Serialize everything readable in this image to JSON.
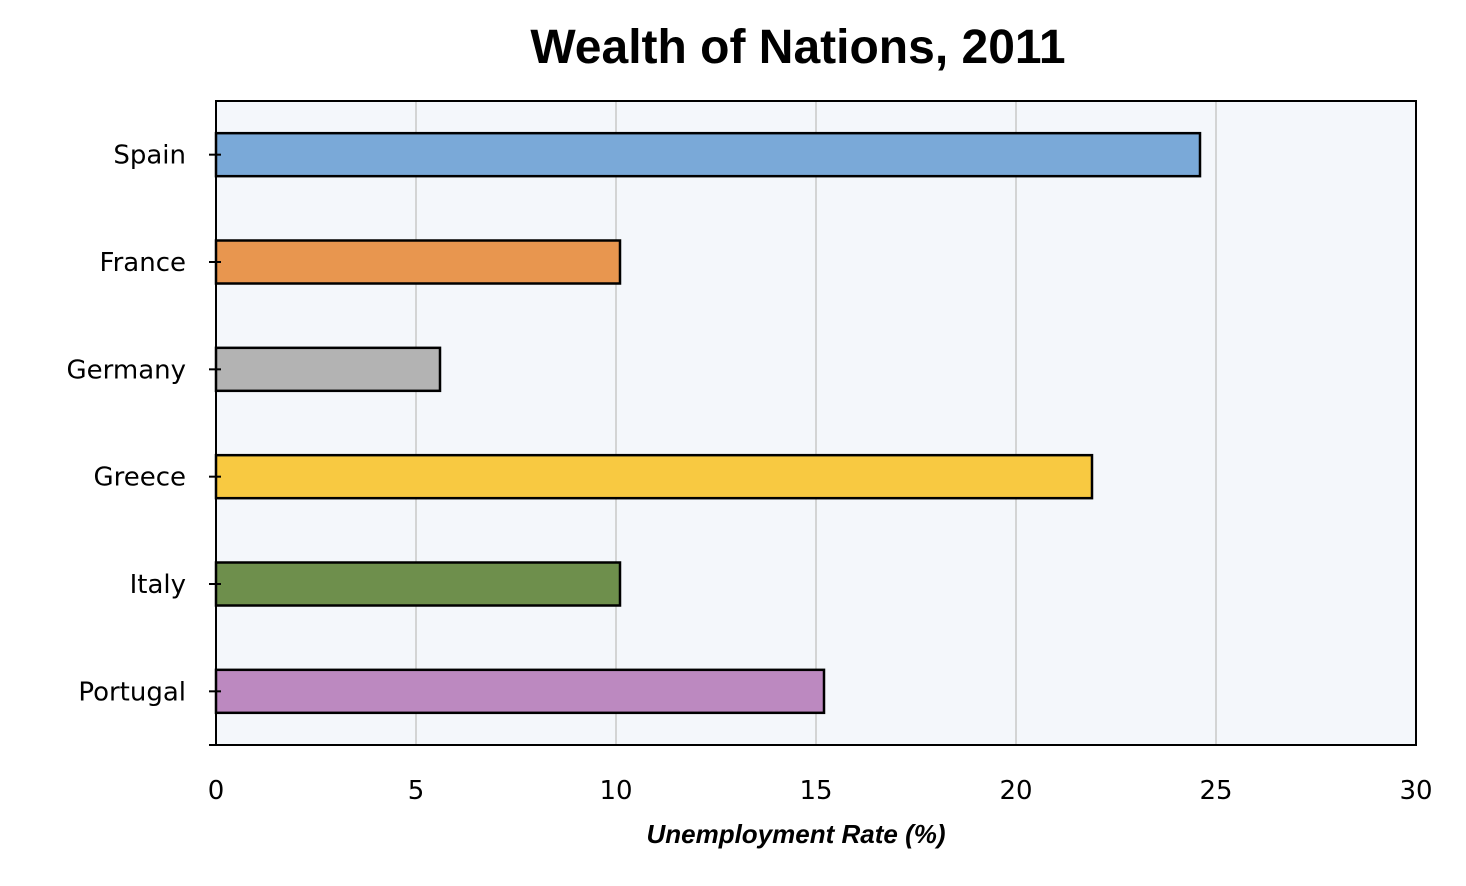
{
  "chart_data": {
    "type": "bar",
    "orientation": "horizontal",
    "title": "Wealth of Nations, 2011",
    "xlabel": "Unemployment Rate (%)",
    "ylabel": "",
    "categories": [
      "Spain",
      "France",
      "Germany",
      "Greece",
      "Italy",
      "Portugal"
    ],
    "values": [
      24.6,
      10.1,
      5.6,
      21.9,
      10.1,
      15.2
    ],
    "colors": [
      "#7aa9d8",
      "#e8964f",
      "#b3b3b3",
      "#f8c941",
      "#6e8f4c",
      "#bc89c0"
    ],
    "xlim": [
      0,
      30
    ],
    "xticks": [
      0,
      5,
      10,
      15,
      20,
      25,
      30
    ],
    "grid": "vertical",
    "legend": "none",
    "plot_background": "#f4f7fb",
    "gridline_color": "#c8c8c8",
    "bar_edge_color": "#000000"
  }
}
